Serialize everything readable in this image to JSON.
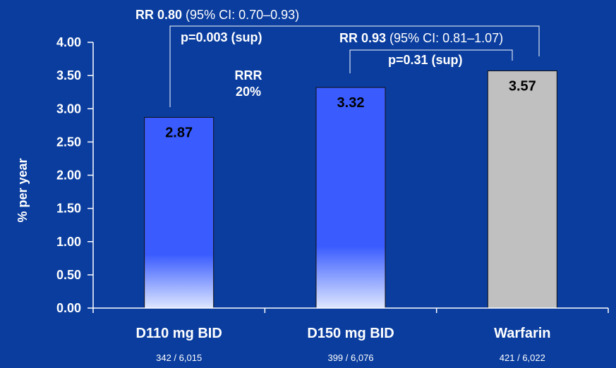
{
  "chart_data": {
    "type": "bar",
    "title": "",
    "xlabel": "",
    "ylabel": "% per year",
    "ylim": [
      0,
      4.0
    ],
    "yticks": [
      "0.00",
      "0.50",
      "1.00",
      "1.50",
      "2.00",
      "2.50",
      "3.00",
      "3.50",
      "4.00"
    ],
    "categories": [
      "D110 mg BID",
      "D150 mg BID",
      "Warfarin"
    ],
    "values": [
      2.87,
      3.32,
      3.57
    ],
    "value_labels": [
      "2.87",
      "3.32",
      "3.57"
    ],
    "sublabels": [
      "342 / 6,015",
      "399 / 6,076",
      "421 / 6,022"
    ],
    "grid": false,
    "annotations": {
      "rr1_bold": "RR 0.80",
      "rr1_ci": " (95% CI: 0.70–0.93)",
      "p1": "p=0.003 (sup)",
      "rrr_line1": "RRR",
      "rrr_line2": "20%",
      "rr2_bold": "RR 0.93",
      "rr2_ci": " (95% CI: 0.81–1.07)",
      "p2": "p=0.31 (sup)"
    },
    "colors": {
      "background": "#0a3d9e",
      "dabigatran_bar_top": "#3a5cff",
      "dabigatran_bar_bottom": "#dde6ff",
      "warfarin_bar": "#c0c0c0",
      "axis_text": "#ffffff",
      "value_text": "#000000"
    }
  }
}
